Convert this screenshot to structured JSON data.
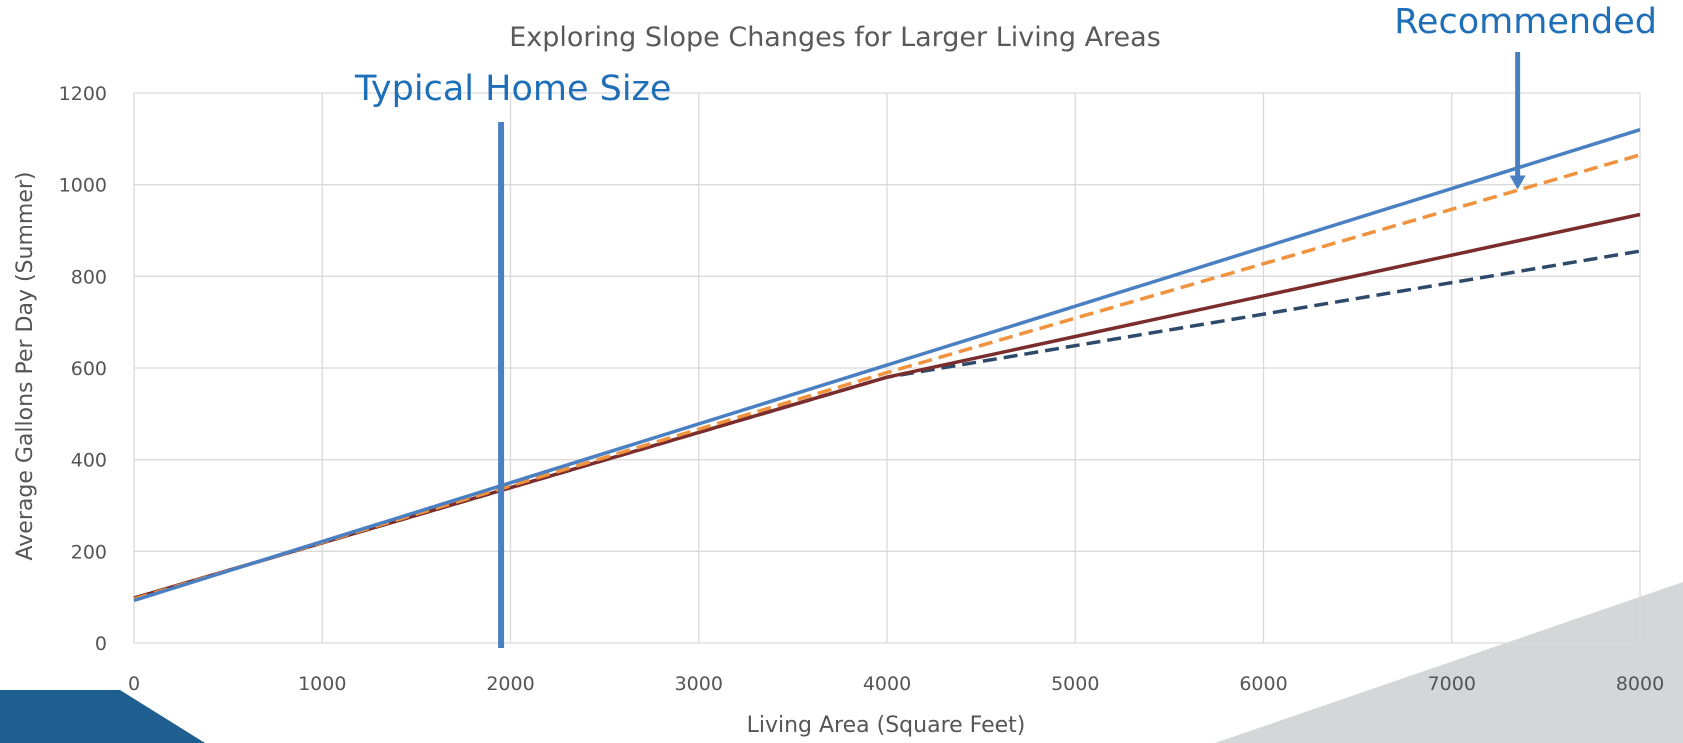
{
  "chart_data": {
    "type": "line",
    "title": "Exploring Slope Changes for Larger Living Areas",
    "xlabel": "Living Area (Square Feet)",
    "ylabel": "Average Gallons Per Day (Summer)",
    "xlim": [
      0,
      8000
    ],
    "ylim": [
      0,
      1200
    ],
    "xticks": [
      0,
      1000,
      2000,
      3000,
      4000,
      5000,
      6000,
      7000,
      8000
    ],
    "yticks": [
      0,
      200,
      400,
      600,
      800,
      1000,
      1200
    ],
    "grid": true,
    "legend": "none",
    "series": [
      {
        "color": "#2e4a6b",
        "dash": true,
        "x": [
          0,
          4000,
          8000
        ],
        "y": [
          98,
          580,
          855
        ]
      },
      {
        "color": "#7b2c2c",
        "dash": false,
        "x": [
          0,
          4000,
          8000
        ],
        "y": [
          98,
          580,
          935
        ]
      },
      {
        "color": "#f0923e",
        "dash": true,
        "x": [
          0,
          4000,
          8000
        ],
        "y": [
          96,
          590,
          1065
        ]
      },
      {
        "color": "#4a7fc1",
        "dash": false,
        "x": [
          0,
          8000
        ],
        "y": [
          93,
          1120
        ]
      }
    ],
    "annotations": [
      {
        "label": "Typical Home Size",
        "x": 1950,
        "type": "vertical-line",
        "color": "#4a7fc1"
      },
      {
        "label": "Recommended",
        "x": 7350,
        "y": 985,
        "type": "arrow",
        "color": "#4a7fc1"
      }
    ]
  },
  "colors": {
    "grid": "#d9d9d9",
    "annotation_text": "#1f6fb8",
    "corner_blue": "#1f5f8f",
    "corner_gray": "#d4d6d8"
  }
}
